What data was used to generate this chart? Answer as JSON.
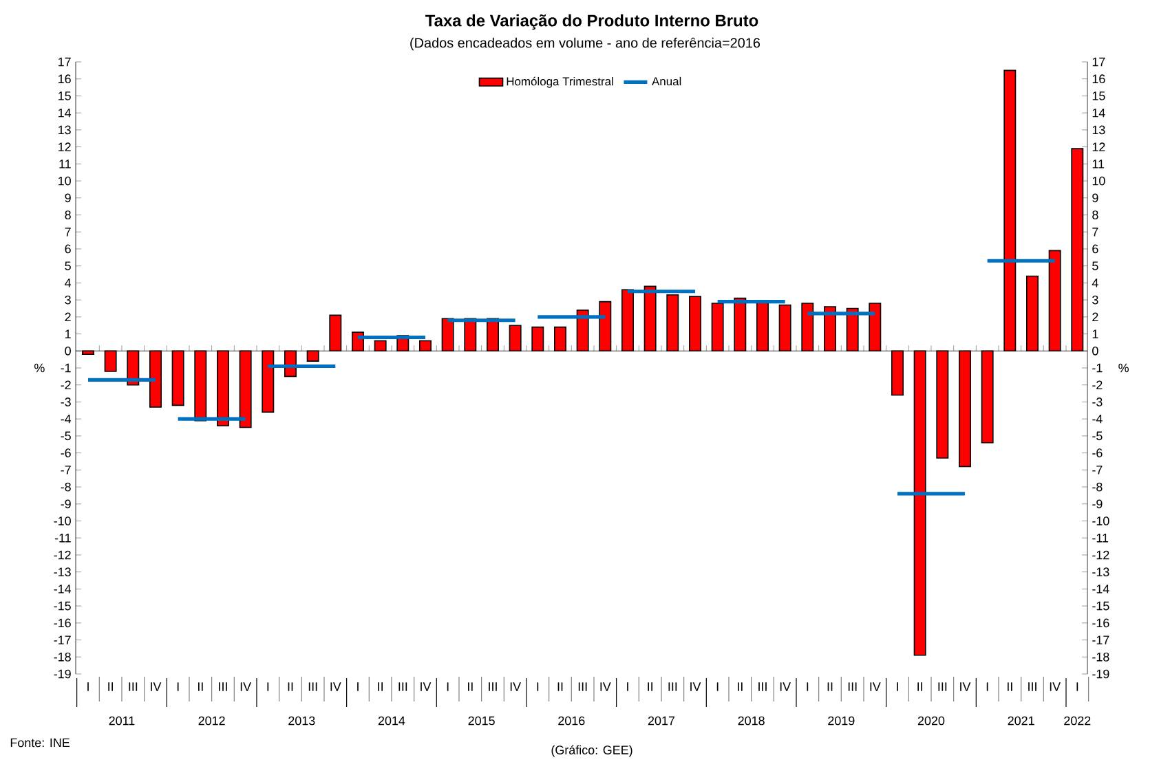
{
  "chart_data": {
    "type": "bar",
    "title": "Taxa de Variação do Produto Interno Bruto",
    "subtitle": "(Dados encadeados em volume - ano de referência=2016",
    "ylabel": "%",
    "y2label": "%",
    "categories": [
      "I",
      "II",
      "III",
      "IV",
      "I",
      "II",
      "III",
      "IV",
      "I",
      "II",
      "III",
      "IV",
      "I",
      "II",
      "III",
      "IV",
      "I",
      "II",
      "III",
      "IV",
      "I",
      "II",
      "III",
      "IV",
      "I",
      "II",
      "III",
      "IV",
      "I",
      "II",
      "III",
      "IV",
      "I",
      "II",
      "III",
      "IV",
      "I",
      "II",
      "III",
      "IV",
      "I",
      "II",
      "III",
      "IV",
      "I"
    ],
    "series": [
      {
        "name": "Homóloga Trimestral",
        "color": "#ff0000",
        "values": [
          -0.2,
          -1.2,
          -2.0,
          -3.3,
          -3.2,
          -4.1,
          -4.4,
          -4.5,
          -3.6,
          -1.5,
          -0.6,
          2.1,
          1.1,
          0.6,
          0.9,
          0.6,
          1.9,
          1.9,
          1.9,
          1.5,
          1.4,
          1.4,
          2.4,
          2.9,
          3.6,
          3.8,
          3.3,
          3.2,
          2.8,
          3.1,
          2.9,
          2.7,
          2.8,
          2.6,
          2.5,
          2.8,
          -2.6,
          -17.9,
          -6.3,
          -6.8,
          -5.4,
          16.5,
          4.4,
          5.9,
          11.9
        ]
      },
      {
        "name": "Anual",
        "type": "line",
        "color": "#0070c0",
        "values": [
          -1.7,
          -1.7,
          -1.7,
          -1.7,
          -4.0,
          -4.0,
          -4.0,
          -4.0,
          -0.9,
          -0.9,
          -0.9,
          -0.9,
          0.8,
          0.8,
          0.8,
          0.8,
          1.8,
          1.8,
          1.8,
          1.8,
          2.0,
          2.0,
          2.0,
          2.0,
          3.5,
          3.5,
          3.5,
          3.5,
          2.9,
          2.9,
          2.9,
          2.9,
          2.2,
          2.2,
          2.2,
          2.2,
          -8.4,
          -8.4,
          -8.4,
          -8.4,
          5.3,
          5.3,
          5.3,
          5.3,
          null
        ]
      }
    ],
    "ylim": [
      -19,
      17
    ],
    "yticks": [
      -19,
      -18,
      -17,
      -16,
      -15,
      -14,
      -13,
      -12,
      -11,
      -10,
      -9,
      -8,
      -7,
      -6,
      -5,
      -4,
      -3,
      -2,
      -1,
      0,
      1,
      2,
      3,
      4,
      5,
      6,
      7,
      8,
      9,
      10,
      11,
      12,
      13,
      14,
      15,
      16,
      17
    ],
    "y2lim": [
      -19,
      17
    ],
    "y2ticks": [
      -19,
      -18,
      -17,
      -16,
      -15,
      -14,
      -13,
      -12,
      -11,
      -10,
      -9,
      -8,
      -7,
      -6,
      -5,
      -4,
      -3,
      -2,
      -1,
      0,
      1,
      2,
      3,
      4,
      5,
      6,
      7,
      8,
      9,
      10,
      11,
      12,
      13,
      14,
      15,
      16,
      17
    ],
    "legend": "top",
    "annotations": [
      "Fonte: INE",
      "(Gráfico: GEE)",
      "2011",
      "2012",
      "2013",
      "2014",
      "2015",
      "2016",
      "2017",
      "2018",
      "2019",
      "2020",
      "2021",
      "2022"
    ]
  }
}
